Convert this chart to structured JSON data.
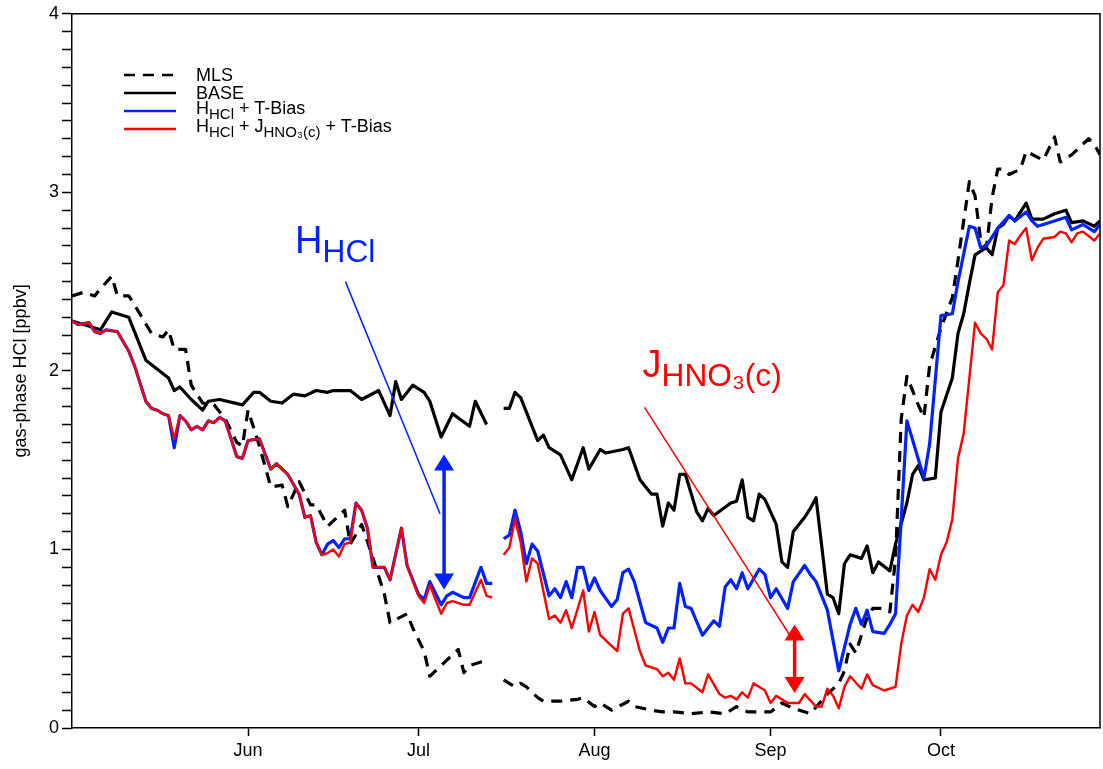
{
  "chart_data": {
    "type": "line",
    "ylabel": "gas-phase HCl [ppbv]",
    "legend": "top left",
    "xlim": [
      "--05-01",
      "--10-29"
    ],
    "ylim": [
      0,
      4
    ],
    "xticks": [
      {
        "value": "--06-01",
        "label": "Jun"
      },
      {
        "value": "--07-01",
        "label": "Jul"
      },
      {
        "value": "--08-01",
        "label": "Aug"
      },
      {
        "value": "--09-01",
        "label": "Sep"
      },
      {
        "value": "--10-01",
        "label": "Oct"
      }
    ],
    "yticks": [
      0,
      {
        "value": 0.1,
        "label": null
      },
      {
        "value": 0.2,
        "label": null
      },
      {
        "value": 0.3,
        "label": null
      },
      {
        "value": 0.4,
        "label": null
      },
      {
        "value": 0.5,
        "label": null
      },
      {
        "value": 0.6,
        "label": null
      },
      {
        "value": 0.7,
        "label": null
      },
      {
        "value": 0.8,
        "label": null
      },
      {
        "value": 0.9,
        "label": null
      },
      1,
      {
        "value": 1.1,
        "label": null
      },
      {
        "value": 1.2,
        "label": null
      },
      {
        "value": 1.3,
        "label": null
      },
      {
        "value": 1.4,
        "label": null
      },
      {
        "value": 1.5,
        "label": null
      },
      {
        "value": 1.6,
        "label": null
      },
      {
        "value": 1.7,
        "label": null
      },
      {
        "value": 1.8,
        "label": null
      },
      {
        "value": 1.9,
        "label": null
      },
      2,
      {
        "value": 2.1,
        "label": null
      },
      {
        "value": 2.2,
        "label": null
      },
      {
        "value": 2.3,
        "label": null
      },
      {
        "value": 2.4,
        "label": null
      },
      {
        "value": 2.5,
        "label": null
      },
      {
        "value": 2.6,
        "label": null
      },
      {
        "value": 2.7,
        "label": null
      },
      {
        "value": 2.8,
        "label": null
      },
      {
        "value": 2.9,
        "label": null
      },
      3,
      {
        "value": 3.1,
        "label": null
      },
      {
        "value": 3.2,
        "label": null
      },
      {
        "value": 3.3,
        "label": null
      },
      {
        "value": 3.4,
        "label": null
      },
      {
        "value": 3.5,
        "label": null
      },
      {
        "value": 3.6,
        "label": null
      },
      {
        "value": 3.7,
        "label": null
      },
      {
        "value": 3.8,
        "label": null
      },
      {
        "value": 3.9,
        "label": null
      },
      4
    ],
    "annotations": [
      "H$_{HCl}$",
      "J$_{HNO₃(c)}$"
    ],
    "series": [
      {
        "name": "MLS",
        "color": "#000000",
        "line_style": "dashed",
        "x": [
          "--05-01",
          "--05-03",
          "--05-05",
          "--05-06",
          "--05-08",
          "--05-09",
          "--05-11",
          "--05-12",
          "--05-15",
          "--05-17",
          "--05-18",
          "--05-19",
          "--05-21",
          "--05-22",
          "--05-24",
          "--05-26",
          "--05-28",
          "--05-30",
          "--05-31",
          "--06-01",
          "--06-03",
          "--06-05",
          "--06-07",
          "--06-08",
          "--06-10",
          "--06-12",
          "--06-13",
          "--06-15",
          "--06-18",
          "--06-19",
          "--06-21",
          "--06-23",
          "--06-25",
          "--06-26",
          "--06-29",
          "--06-30",
          "--07-02",
          "--07-03",
          "--07-05",
          "--07-06",
          "--07-08",
          "--07-09",
          "--07-10",
          "--07-12",
          "--07-13",
          "--07-14",
          "--07-16",
          "--07-17",
          "--07-18",
          "--07-19",
          "--07-20",
          "--07-22",
          "--07-23",
          "--07-26",
          "--07-29",
          "--07-30",
          "--08-01",
          "--08-02",
          "--08-04",
          "--08-07",
          "--08-08",
          "--08-11",
          "--08-13",
          "--08-15",
          "--08-18",
          "--08-21",
          "--08-24",
          "--08-26",
          "--08-28",
          "--09-01",
          "--09-03",
          "--09-05",
          "--09-08",
          "--09-11",
          "--09-13",
          "--09-14",
          "--09-15",
          "--09-16",
          "--09-18",
          "--09-19",
          "--09-21",
          "--09-22",
          "--09-23",
          "--09-24",
          "--09-25",
          "--09-27",
          "--09-28",
          "--09-29",
          "--10-01",
          "--10-03",
          "--10-04",
          "--10-06",
          "--10-07",
          "--10-08",
          "--10-09",
          "--10-10",
          "--10-11",
          "--10-12",
          "--10-13",
          "--10-15",
          "--10-16",
          "--10-19",
          "--10-21",
          "--10-22",
          "--10-24",
          "--10-27",
          "--10-28",
          "--10-29"
        ],
        "values": [
          2.42,
          2.44,
          2.42,
          2.46,
          2.53,
          2.42,
          2.42,
          2.37,
          2.21,
          2.19,
          2.23,
          2.12,
          2.12,
          1.92,
          1.82,
          1.81,
          1.73,
          1.6,
          1.58,
          1.78,
          1.58,
          1.35,
          1.36,
          1.24,
          1.38,
          1.25,
          1.25,
          1.13,
          1.22,
          1.03,
          1.14,
          0.95,
          0.75,
          0.59,
          0.64,
          0.56,
          0.43,
          0.29,
          0.35,
          0.38,
          0.44,
          0.31,
          0.35,
          0.37,
          0.38,
          null,
          0.27,
          0.25,
          0.23,
          0.25,
          0.23,
          0.17,
          0.15,
          0.15,
          0.16,
          0.17,
          0.12,
          0.14,
          0.1,
          0.15,
          0.12,
          0.1,
          0.09,
          0.09,
          0.08,
          0.09,
          0.08,
          0.12,
          0.09,
          0.09,
          0.14,
          0.11,
          0.08,
          0.19,
          0.25,
          0.32,
          0.47,
          0.42,
          0.62,
          0.67,
          0.67,
          0.65,
          0.95,
          1.73,
          1.97,
          1.81,
          1.74,
          2.03,
          2.24,
          2.41,
          2.62,
          3.06,
          2.98,
          2.73,
          2.69,
          2.97,
          3.13,
          3.13,
          3.1,
          3.13,
          3.23,
          3.18,
          3.31,
          3.17,
          3.21,
          3.3,
          3.27,
          3.21
        ]
      },
      {
        "name": "BASE",
        "color": "#000000",
        "x": [
          "--05-01",
          "--05-06",
          "--05-08",
          "--05-11",
          "--05-14",
          "--05-18",
          "--05-19",
          "--05-20",
          "--05-22",
          "--05-24",
          "--05-25",
          "--05-27",
          "--05-31",
          "--06-02",
          "--06-03",
          "--06-05",
          "--06-07",
          "--06-09",
          "--06-11",
          "--06-13",
          "--06-15",
          "--06-16",
          "--06-19",
          "--06-21",
          "--06-24",
          "--06-26",
          "--06-27",
          "--06-28",
          "--06-30",
          "--07-02",
          "--07-03",
          "--07-05",
          "--07-07",
          "--07-10",
          "--07-11",
          "--07-13",
          "--07-15",
          "--07-16",
          "--07-17",
          "--07-18",
          "--07-19",
          "--07-22",
          "--07-23",
          "--07-24",
          "--07-26",
          "--07-28",
          "--07-30",
          "--07-31",
          "--08-02",
          "--08-03",
          "--08-06",
          "--08-07",
          "--08-09",
          "--08-11",
          "--08-12",
          "--08-13",
          "--08-14",
          "--08-15",
          "--08-16",
          "--08-17",
          "--08-19",
          "--08-20",
          "--08-21",
          "--08-22",
          "--08-25",
          "--08-26",
          "--08-27",
          "--08-28",
          "--08-29",
          "--08-30",
          "--08-31",
          "--09-02",
          "--09-03",
          "--09-04",
          "--09-05",
          "--09-07",
          "--09-08",
          "--09-09",
          "--09-11",
          "--09-12",
          "--09-13",
          "--09-14",
          "--09-15",
          "--09-17",
          "--09-18",
          "--09-19",
          "--09-20",
          "--09-22",
          "--09-23",
          "--09-25",
          "--09-26",
          "--09-27",
          "--09-28",
          "--09-30",
          "--10-01",
          "--10-03",
          "--10-04",
          "--10-05",
          "--10-06",
          "--10-07",
          "--10-09",
          "--10-10",
          "--10-11",
          "--10-12",
          "--10-13",
          "--10-14",
          "--10-16",
          "--10-17",
          "--10-19",
          "--10-21",
          "--10-23",
          "--10-24",
          "--10-26",
          "--10-28",
          "--10-29"
        ],
        "values": [
          2.28,
          2.23,
          2.33,
          2.3,
          2.06,
          1.96,
          1.89,
          1.91,
          1.84,
          1.78,
          1.83,
          1.84,
          1.81,
          1.88,
          1.88,
          1.83,
          1.82,
          1.87,
          1.86,
          1.89,
          1.88,
          1.89,
          1.89,
          1.84,
          1.89,
          1.75,
          1.94,
          1.84,
          1.92,
          1.88,
          1.83,
          1.63,
          1.76,
          1.69,
          1.83,
          1.7,
          null,
          1.79,
          1.79,
          1.88,
          1.85,
          1.61,
          1.64,
          1.57,
          1.53,
          1.39,
          1.57,
          1.45,
          1.56,
          1.54,
          1.56,
          1.57,
          1.39,
          1.31,
          1.31,
          1.13,
          1.26,
          1.22,
          1.42,
          1.42,
          1.21,
          1.16,
          1.23,
          1.19,
          1.26,
          1.27,
          1.39,
          1.18,
          1.16,
          1.31,
          1.28,
          1.14,
          0.93,
          0.9,
          1.1,
          1.18,
          1.23,
          1.29,
          0.75,
          0.73,
          0.64,
          0.92,
          0.97,
          0.95,
          1.02,
          0.87,
          0.93,
          0.88,
          1.03,
          1.26,
          1.42,
          1.47,
          1.39,
          1.4,
          1.77,
          1.96,
          2.21,
          2.32,
          2.49,
          2.65,
          2.69,
          2.65,
          2.8,
          2.82,
          2.87,
          2.84,
          2.94,
          2.85,
          2.85,
          2.88,
          2.9,
          2.83,
          2.84,
          2.81,
          2.84
        ]
      },
      {
        "name": "H$_{HCl}$ + T-Bias",
        "color": "#0022ff",
        "x": [
          "--05-01",
          "--05-02",
          "--05-04",
          "--05-05",
          "--05-06",
          "--05-07",
          "--05-09",
          "--05-11",
          "--05-12",
          "--05-14",
          "--05-15",
          "--05-16",
          "--05-17",
          "--05-18",
          "--05-19",
          "--05-20",
          "--05-21",
          "--05-22",
          "--05-23",
          "--05-24",
          "--05-25",
          "--05-26",
          "--05-27",
          "--05-28",
          "--05-30",
          "--05-31",
          "--06-01",
          "--06-03",
          "--06-05",
          "--06-06",
          "--06-08",
          "--06-10",
          "--06-11",
          "--06-12",
          "--06-13",
          "--06-14",
          "--06-15",
          "--06-16",
          "--06-17",
          "--06-18",
          "--06-19",
          "--06-20",
          "--06-21",
          "--06-22",
          "--06-23",
          "--06-25",
          "--06-26",
          "--06-28",
          "--06-29",
          "--07-01",
          "--07-02",
          "--07-03",
          "--07-05",
          "--07-06",
          "--07-07",
          "--07-09",
          "--07-10",
          "--07-12",
          "--07-13",
          "--07-14",
          "--07-15",
          "--07-16",
          "--07-17",
          "--07-18",
          "--07-19",
          "--07-20",
          "--07-21",
          "--07-22",
          "--07-24",
          "--07-25",
          "--07-26",
          "--07-27",
          "--07-28",
          "--07-29",
          "--07-30",
          "--07-31",
          "--08-01",
          "--08-02",
          "--08-04",
          "--08-05",
          "--08-06",
          "--08-07",
          "--08-08",
          "--08-10",
          "--08-12",
          "--08-13",
          "--08-14",
          "--08-15",
          "--08-16",
          "--08-17",
          "--08-18",
          "--08-20",
          "--08-22",
          "--08-23",
          "--08-24",
          "--08-25",
          "--08-26",
          "--08-27",
          "--08-28",
          "--08-30",
          "--08-31",
          "--09-01",
          "--09-02",
          "--09-04",
          "--09-05",
          "--09-07",
          "--09-08",
          "--09-09",
          "--09-11",
          "--09-13",
          "--09-15",
          "--09-16",
          "--09-17",
          "--09-18",
          "--09-19",
          "--09-21",
          "--09-22",
          "--09-23",
          "--09-24",
          "--09-25",
          "--09-28",
          "--09-29",
          "--10-01",
          "--10-03",
          "--10-04",
          "--10-06",
          "--10-07",
          "--10-08",
          "--10-09",
          "--10-11",
          "--10-13",
          "--10-14",
          "--10-16",
          "--10-17",
          "--10-18",
          "--10-20",
          "--10-23",
          "--10-24",
          "--10-26",
          "--10-28",
          "--10-29"
        ],
        "values": [
          2.28,
          2.26,
          2.27,
          2.22,
          2.21,
          2.23,
          2.22,
          2.11,
          2.03,
          1.83,
          1.79,
          1.78,
          1.76,
          1.75,
          1.57,
          1.75,
          1.72,
          1.67,
          1.69,
          1.67,
          1.72,
          1.71,
          1.74,
          1.72,
          1.52,
          1.51,
          1.61,
          1.62,
          1.45,
          1.48,
          1.42,
          1.31,
          1.18,
          1.19,
          1.04,
          0.97,
          1.03,
          1.05,
          1.01,
          1.06,
          1.06,
          1.26,
          1.22,
          1.12,
          0.9,
          0.9,
          0.83,
          1.12,
          0.91,
          0.75,
          0.72,
          0.82,
          0.69,
          0.74,
          0.76,
          0.73,
          0.73,
          0.9,
          0.81,
          0.81,
          null,
          1.06,
          1.08,
          1.22,
          1.1,
          0.92,
          1.03,
          0.99,
          0.74,
          0.78,
          0.73,
          0.82,
          0.73,
          0.9,
          0.9,
          0.77,
          0.84,
          0.77,
          0.68,
          0.72,
          0.87,
          0.89,
          0.82,
          0.59,
          0.56,
          0.48,
          0.56,
          0.56,
          0.81,
          0.68,
          0.67,
          0.52,
          0.6,
          0.57,
          0.79,
          0.83,
          0.78,
          0.87,
          0.78,
          0.89,
          0.86,
          0.73,
          0.78,
          0.67,
          0.82,
          0.91,
          0.86,
          0.82,
          0.66,
          0.32,
          0.58,
          0.67,
          0.58,
          0.66,
          0.54,
          0.53,
          0.58,
          0.64,
          1.17,
          1.72,
          1.4,
          1.59,
          2.31,
          2.32,
          2.5,
          2.81,
          2.8,
          2.69,
          2.7,
          2.8,
          2.87,
          2.84,
          2.89,
          2.84,
          2.81,
          2.83,
          2.86,
          2.79,
          2.82,
          2.78,
          2.82
        ]
      },
      {
        "name": "H$_{HCl}$ + J$_{HNO₃(c)}$ + T-Bias",
        "color": "#ff0000",
        "x": [
          "--05-01",
          "--05-02",
          "--05-04",
          "--05-05",
          "--05-06",
          "--05-07",
          "--05-09",
          "--05-11",
          "--05-12",
          "--05-14",
          "--05-15",
          "--05-16",
          "--05-17",
          "--05-18",
          "--05-19",
          "--05-20",
          "--05-21",
          "--05-22",
          "--05-23",
          "--05-24",
          "--05-25",
          "--05-26",
          "--05-27",
          "--05-28",
          "--05-30",
          "--05-31",
          "--06-01",
          "--06-03",
          "--06-05",
          "--06-06",
          "--06-08",
          "--06-10",
          "--06-11",
          "--06-12",
          "--06-13",
          "--06-14",
          "--06-15",
          "--06-16",
          "--06-17",
          "--06-18",
          "--06-19",
          "--06-20",
          "--06-21",
          "--06-22",
          "--06-23",
          "--06-25",
          "--06-26",
          "--06-28",
          "--06-29",
          "--07-01",
          "--07-02",
          "--07-03",
          "--07-05",
          "--07-06",
          "--07-07",
          "--07-09",
          "--07-10",
          "--07-12",
          "--07-13",
          "--07-14",
          "--07-15",
          "--07-16",
          "--07-17",
          "--07-18",
          "--07-19",
          "--07-20",
          "--07-21",
          "--07-22",
          "--07-24",
          "--07-25",
          "--07-26",
          "--07-27",
          "--07-28",
          "--07-30",
          "--07-31",
          "--08-01",
          "--08-02",
          "--08-05",
          "--08-06",
          "--08-07",
          "--08-09",
          "--08-10",
          "--08-12",
          "--08-13",
          "--08-14",
          "--08-15",
          "--08-16",
          "--08-17",
          "--08-18",
          "--08-20",
          "--08-21",
          "--08-23",
          "--08-24",
          "--08-25",
          "--08-26",
          "--08-27",
          "--08-28",
          "--08-29",
          "--08-31",
          "--09-01",
          "--09-02",
          "--09-04",
          "--09-06",
          "--09-07",
          "--09-09",
          "--09-10",
          "--09-11",
          "--09-12",
          "--09-13",
          "--09-14",
          "--09-15",
          "--09-17",
          "--09-18",
          "--09-19",
          "--09-21",
          "--09-23",
          "--09-24",
          "--09-25",
          "--09-26",
          "--09-27",
          "--09-28",
          "--09-29",
          "--09-30",
          "--10-01",
          "--10-02",
          "--10-03",
          "--10-04",
          "--10-05",
          "--10-07",
          "--10-08",
          "--10-09",
          "--10-10",
          "--10-11",
          "--10-12",
          "--10-13",
          "--10-14",
          "--10-15",
          "--10-16",
          "--10-17",
          "--10-18",
          "--10-19",
          "--10-21",
          "--10-22",
          "--10-23",
          "--10-24",
          "--10-25",
          "--10-26",
          "--10-28",
          "--10-29"
        ],
        "values": [
          2.28,
          2.26,
          2.27,
          2.22,
          2.21,
          2.23,
          2.22,
          2.11,
          2.03,
          1.83,
          1.79,
          1.78,
          1.76,
          1.75,
          1.62,
          1.75,
          1.72,
          1.67,
          1.69,
          1.67,
          1.72,
          1.71,
          1.74,
          1.72,
          1.52,
          1.51,
          1.61,
          1.62,
          1.45,
          1.48,
          1.42,
          1.31,
          1.18,
          1.19,
          1.04,
          0.97,
          0.98,
          1.0,
          0.96,
          1.03,
          1.04,
          1.26,
          1.22,
          1.12,
          0.9,
          0.9,
          0.83,
          1.12,
          0.91,
          0.74,
          0.7,
          0.8,
          0.64,
          0.7,
          0.71,
          0.69,
          0.69,
          0.83,
          0.74,
          0.73,
          null,
          0.97,
          1.01,
          1.17,
          1.04,
          0.82,
          0.95,
          0.92,
          0.61,
          0.63,
          0.59,
          0.66,
          0.56,
          0.77,
          0.54,
          0.65,
          0.52,
          0.43,
          0.64,
          0.67,
          0.43,
          0.35,
          0.33,
          0.29,
          0.31,
          0.27,
          0.39,
          0.25,
          0.25,
          0.2,
          0.3,
          0.19,
          0.17,
          0.18,
          0.16,
          0.2,
          0.17,
          0.25,
          0.21,
          0.14,
          0.18,
          0.14,
          0.14,
          0.19,
          0.12,
          0.12,
          0.22,
          0.18,
          0.11,
          0.23,
          0.29,
          0.22,
          0.3,
          0.24,
          0.21,
          0.23,
          0.47,
          0.63,
          0.69,
          0.65,
          0.73,
          0.89,
          0.83,
          0.97,
          1.04,
          1.17,
          1.51,
          1.65,
          2.27,
          2.21,
          2.18,
          2.12,
          2.44,
          2.48,
          2.73,
          2.71,
          2.76,
          2.8,
          2.62,
          2.69,
          2.74,
          2.75,
          2.78,
          2.77,
          2.72,
          2.77,
          2.78,
          2.73,
          2.77
        ]
      }
    ]
  }
}
